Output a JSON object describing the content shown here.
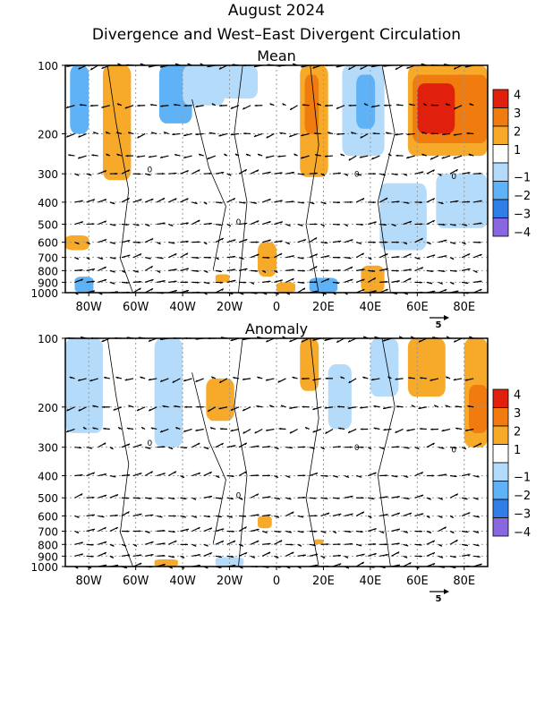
{
  "title": "August 2024",
  "subtitle": "Divergence and West–East Divergent Circulation",
  "chart_data": [
    {
      "type": "heatmap",
      "title": "Mean",
      "x_ticks": [
        "80W",
        "60W",
        "40W",
        "20W",
        "0",
        "20E",
        "40E",
        "60E",
        "80E"
      ],
      "x_tick_values": [
        -80,
        -60,
        -40,
        -20,
        0,
        20,
        40,
        60,
        80
      ],
      "xlim": [
        -90,
        90
      ],
      "y_ticks": [
        "100",
        "200",
        "300",
        "400",
        "500",
        "600",
        "700",
        "800",
        "900",
        "1000"
      ],
      "y_tick_values": [
        100,
        200,
        300,
        400,
        500,
        600,
        700,
        800,
        900,
        1000
      ],
      "ylim": [
        1000,
        100
      ],
      "y_scale": "log",
      "legend_levels": [
        "4",
        "3",
        "2",
        "1",
        "−1",
        "−2",
        "−3",
        "−4"
      ],
      "legend_colors": [
        "#e0200c",
        "#f07c10",
        "#f7aa2a",
        "#ffffff",
        "#b5dbfa",
        "#5fb2f5",
        "#2f7ee8",
        "#8a66e0"
      ],
      "vector_reference": "5",
      "contour_label": "0",
      "grid": "dotted vertical lines at x ticks and dotted horizontal lines at y ticks",
      "legend_position": "right",
      "patches": [
        {
          "lon": [
            -88,
            -80
          ],
          "p": [
            100,
            200
          ],
          "level": -2
        },
        {
          "lon": [
            -74,
            -62
          ],
          "p": [
            100,
            320
          ],
          "level": 2
        },
        {
          "lon": [
            -50,
            -36
          ],
          "p": [
            100,
            180
          ],
          "level": -2
        },
        {
          "lon": [
            -40,
            -22
          ],
          "p": [
            100,
            150
          ],
          "level": -1
        },
        {
          "lon": [
            -24,
            -8
          ],
          "p": [
            100,
            140
          ],
          "level": -1
        },
        {
          "lon": [
            10,
            22
          ],
          "p": [
            100,
            310
          ],
          "level": 2
        },
        {
          "lon": [
            12,
            18
          ],
          "p": [
            110,
            200
          ],
          "level": 3
        },
        {
          "lon": [
            28,
            46
          ],
          "p": [
            100,
            250
          ],
          "level": -1
        },
        {
          "lon": [
            34,
            42
          ],
          "p": [
            110,
            190
          ],
          "level": -2
        },
        {
          "lon": [
            56,
            90
          ],
          "p": [
            100,
            250
          ],
          "level": 2
        },
        {
          "lon": [
            58,
            90
          ],
          "p": [
            110,
            220
          ],
          "level": 3
        },
        {
          "lon": [
            60,
            76
          ],
          "p": [
            120,
            200
          ],
          "level": 4
        },
        {
          "lon": [
            44,
            64
          ],
          "p": [
            330,
            650
          ],
          "level": -1
        },
        {
          "lon": [
            68,
            90
          ],
          "p": [
            300,
            520
          ],
          "level": -1
        },
        {
          "lon": [
            -90,
            -80
          ],
          "p": [
            560,
            650
          ],
          "level": 2
        },
        {
          "lon": [
            -8,
            0
          ],
          "p": [
            600,
            850
          ],
          "level": 2
        },
        {
          "lon": [
            -86,
            -78
          ],
          "p": [
            850,
            1000
          ],
          "level": -2
        },
        {
          "lon": [
            14,
            26
          ],
          "p": [
            860,
            1000
          ],
          "level": -2
        },
        {
          "lon": [
            36,
            46
          ],
          "p": [
            760,
            1000
          ],
          "level": 2
        },
        {
          "lon": [
            0,
            8
          ],
          "p": [
            900,
            1000
          ],
          "level": 2
        },
        {
          "lon": [
            -26,
            -20
          ],
          "p": [
            830,
            900
          ],
          "level": 2
        }
      ]
    },
    {
      "type": "heatmap",
      "title": "Anomaly",
      "x_ticks": [
        "80W",
        "60W",
        "40W",
        "20W",
        "0",
        "20E",
        "40E",
        "60E",
        "80E"
      ],
      "x_tick_values": [
        -80,
        -60,
        -40,
        -20,
        0,
        20,
        40,
        60,
        80
      ],
      "xlim": [
        -90,
        90
      ],
      "y_ticks": [
        "100",
        "200",
        "300",
        "400",
        "500",
        "600",
        "700",
        "800",
        "900",
        "1000"
      ],
      "y_tick_values": [
        100,
        200,
        300,
        400,
        500,
        600,
        700,
        800,
        900,
        1000
      ],
      "ylim": [
        1000,
        100
      ],
      "y_scale": "log",
      "legend_levels": [
        "4",
        "3",
        "2",
        "1",
        "−1",
        "−2",
        "−3",
        "−4"
      ],
      "legend_colors": [
        "#e0200c",
        "#f07c10",
        "#f7aa2a",
        "#ffffff",
        "#b5dbfa",
        "#5fb2f5",
        "#2f7ee8",
        "#8a66e0"
      ],
      "vector_reference": "5",
      "contour_label": "0",
      "grid": "dotted vertical lines at x ticks and dotted horizontal lines at y ticks",
      "legend_position": "right",
      "patches": [
        {
          "lon": [
            -90,
            -74
          ],
          "p": [
            100,
            260
          ],
          "level": -1
        },
        {
          "lon": [
            -52,
            -40
          ],
          "p": [
            100,
            300
          ],
          "level": -1
        },
        {
          "lon": [
            -30,
            -18
          ],
          "p": [
            150,
            230
          ],
          "level": 2
        },
        {
          "lon": [
            10,
            18
          ],
          "p": [
            100,
            170
          ],
          "level": 2
        },
        {
          "lon": [
            22,
            32
          ],
          "p": [
            130,
            250
          ],
          "level": -1
        },
        {
          "lon": [
            56,
            72
          ],
          "p": [
            100,
            180
          ],
          "level": 2
        },
        {
          "lon": [
            80,
            90
          ],
          "p": [
            100,
            300
          ],
          "level": 2
        },
        {
          "lon": [
            82,
            90
          ],
          "p": [
            160,
            260
          ],
          "level": 3
        },
        {
          "lon": [
            40,
            52
          ],
          "p": [
            100,
            180
          ],
          "level": -1
        },
        {
          "lon": [
            -8,
            -2
          ],
          "p": [
            600,
            680
          ],
          "level": 2
        },
        {
          "lon": [
            16,
            20
          ],
          "p": [
            760,
            800
          ],
          "level": 2
        },
        {
          "lon": [
            -52,
            -42
          ],
          "p": [
            930,
            1000
          ],
          "level": 2
        },
        {
          "lon": [
            -26,
            -14
          ],
          "p": [
            910,
            1000
          ],
          "level": -1
        }
      ]
    }
  ]
}
